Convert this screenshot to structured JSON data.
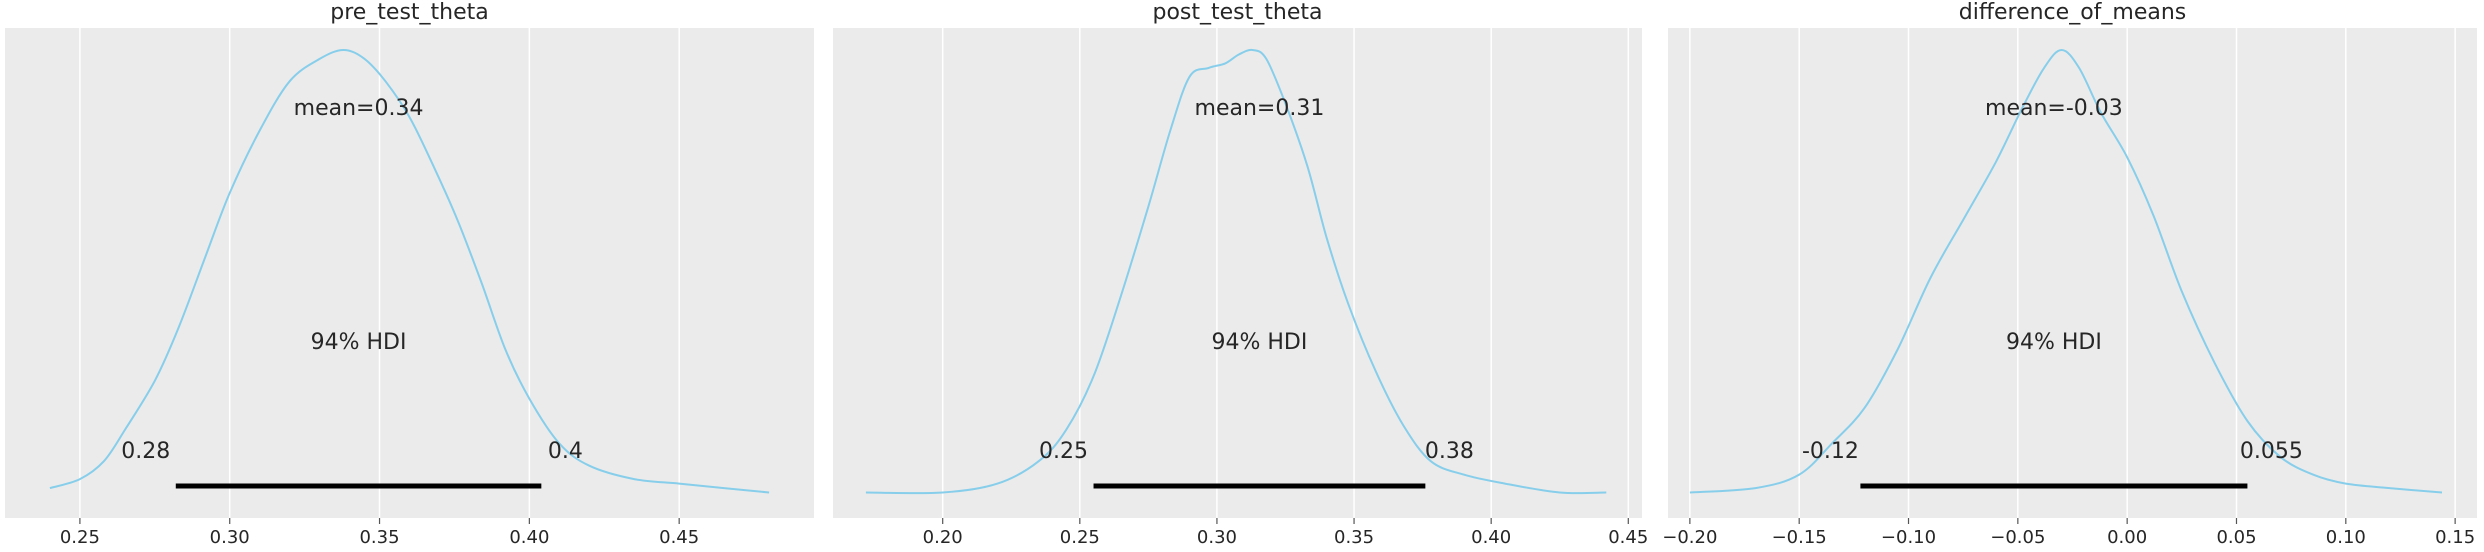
{
  "chart_data": [
    {
      "type": "area",
      "title": "pre_test_theta",
      "xlim": [
        0.225,
        0.495
      ],
      "xticks": [
        0.25,
        0.3,
        0.35,
        0.4,
        0.45
      ],
      "xtick_labels": [
        "0.25",
        "0.30",
        "0.35",
        "0.40",
        "0.45"
      ],
      "grid": true,
      "color": "#87ceeb",
      "mean_label": "mean=0.34",
      "hdi_label": "94% HDI",
      "hdi": [
        0.282,
        0.404
      ],
      "hdi_low_label": "0.28",
      "hdi_high_label": "0.4",
      "density": {
        "x": [
          0.24,
          0.25,
          0.258,
          0.265,
          0.275,
          0.283,
          0.292,
          0.3,
          0.31,
          0.32,
          0.33,
          0.338,
          0.345,
          0.352,
          0.36,
          0.368,
          0.376,
          0.384,
          0.392,
          0.4,
          0.41,
          0.42,
          0.435,
          0.45,
          0.465,
          0.48
        ],
        "y": [
          0.02,
          0.04,
          0.08,
          0.15,
          0.26,
          0.38,
          0.54,
          0.68,
          0.82,
          0.93,
          0.98,
          1.0,
          0.98,
          0.93,
          0.85,
          0.74,
          0.62,
          0.48,
          0.33,
          0.22,
          0.12,
          0.07,
          0.04,
          0.03,
          0.02,
          0.01
        ]
      }
    },
    {
      "type": "area",
      "title": "post_test_theta",
      "xlim": [
        0.16,
        0.455
      ],
      "xticks": [
        0.2,
        0.25,
        0.3,
        0.35,
        0.4,
        0.45
      ],
      "xtick_labels": [
        "0.20",
        "0.25",
        "0.30",
        "0.35",
        "0.40",
        "0.45"
      ],
      "grid": true,
      "color": "#87ceeb",
      "mean_label": "mean=0.31",
      "hdi_label": "94% HDI",
      "hdi": [
        0.255,
        0.376
      ],
      "hdi_low_label": "0.25",
      "hdi_high_label": "0.38",
      "density": {
        "x": [
          0.172,
          0.2,
          0.22,
          0.235,
          0.245,
          0.255,
          0.265,
          0.275,
          0.283,
          0.29,
          0.297,
          0.303,
          0.308,
          0.313,
          0.318,
          0.325,
          0.333,
          0.34,
          0.348,
          0.358,
          0.368,
          0.378,
          0.39,
          0.405,
          0.425,
          0.442
        ],
        "y": [
          0.01,
          0.01,
          0.03,
          0.08,
          0.15,
          0.27,
          0.45,
          0.65,
          0.82,
          0.94,
          0.96,
          0.97,
          0.99,
          1.0,
          0.98,
          0.88,
          0.74,
          0.58,
          0.43,
          0.28,
          0.16,
          0.08,
          0.05,
          0.03,
          0.01,
          0.01
        ]
      }
    },
    {
      "type": "area",
      "title": "difference_of_means",
      "xlim": [
        -0.21,
        0.16
      ],
      "xticks": [
        -0.2,
        -0.15,
        -0.1,
        -0.05,
        0.0,
        0.05,
        0.1,
        0.15
      ],
      "xtick_labels": [
        "−0.20",
        "−0.15",
        "−0.10",
        "−0.05",
        "0.00",
        "0.05",
        "0.10",
        "0.15"
      ],
      "grid": true,
      "color": "#87ceeb",
      "mean_label": "mean=-0.03",
      "hdi_label": "94% HDI",
      "hdi": [
        -0.122,
        0.055
      ],
      "hdi_low_label": "-0.12",
      "hdi_high_label": "0.055",
      "density": {
        "x": [
          -0.2,
          -0.17,
          -0.15,
          -0.135,
          -0.12,
          -0.105,
          -0.09,
          -0.075,
          -0.06,
          -0.048,
          -0.038,
          -0.03,
          -0.022,
          -0.012,
          0.0,
          0.012,
          0.025,
          0.04,
          0.055,
          0.07,
          0.085,
          0.1,
          0.12,
          0.144
        ],
        "y": [
          0.01,
          0.02,
          0.05,
          0.12,
          0.2,
          0.33,
          0.49,
          0.62,
          0.75,
          0.87,
          0.96,
          1.0,
          0.96,
          0.86,
          0.76,
          0.63,
          0.46,
          0.3,
          0.17,
          0.09,
          0.05,
          0.03,
          0.02,
          0.01
        ]
      }
    }
  ]
}
